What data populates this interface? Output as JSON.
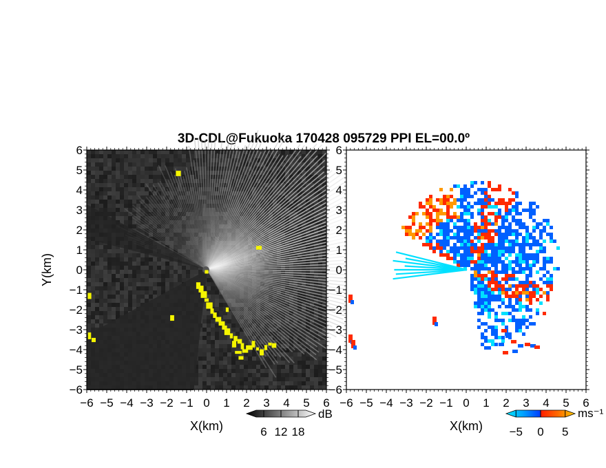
{
  "title": "3D-CDL@Fukuoka 170428 095729 PPI EL=00.0º",
  "chart_data": [
    {
      "type": "heatmap",
      "panel": "left",
      "quantity": "reflectivity",
      "xlabel": "X(km)",
      "ylabel": "Y(km)",
      "xlim": [
        -6,
        6
      ],
      "ylim": [
        -6,
        6
      ],
      "xticks": [
        "-6",
        "-5",
        "-4",
        "-3",
        "-2",
        "-1",
        "0",
        "1",
        "2",
        "3",
        "4",
        "5",
        "6"
      ],
      "yticks": [
        "-6",
        "-5",
        "-4",
        "-3",
        "-2",
        "-1",
        "0",
        "1",
        "2",
        "3",
        "4",
        "5",
        "6"
      ],
      "colorbar": {
        "unit": "dB",
        "ticks": [
          "6",
          "12",
          "18"
        ],
        "range": [
          0,
          24
        ],
        "colormap": "greyscale",
        "highlight_color": "#f5f500"
      }
    },
    {
      "type": "heatmap",
      "panel": "right",
      "quantity": "doppler velocity",
      "xlabel": "X(km)",
      "xlim": [
        -6,
        6
      ],
      "ylim": [
        -6,
        6
      ],
      "xticks": [
        "-6",
        "-5",
        "-4",
        "-3",
        "-2",
        "-1",
        "0",
        "1",
        "2",
        "3",
        "4",
        "5",
        "6"
      ],
      "yticks": [
        "-6",
        "-5",
        "-4",
        "-3",
        "-2",
        "-1",
        "0",
        "1",
        "2",
        "3",
        "4",
        "5",
        "6"
      ],
      "colorbar": {
        "unit": "ms⁻¹",
        "ticks": [
          "−5",
          "0",
          "5"
        ],
        "range": [
          -7,
          7
        ],
        "colors": [
          "#00e0ff",
          "#0060ff",
          "#ff2a00",
          "#ff9900"
        ]
      }
    }
  ]
}
